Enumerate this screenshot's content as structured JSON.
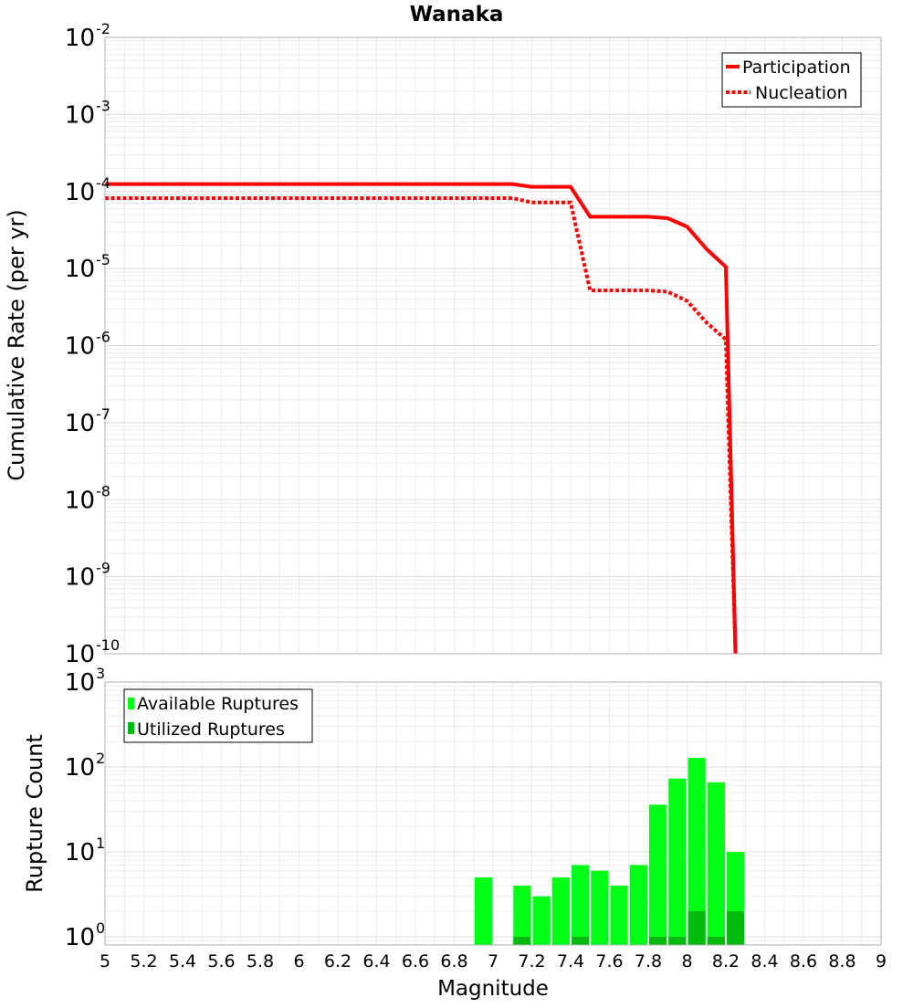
{
  "chart_data": {
    "title": "Wanaka",
    "xlabel": "Magnitude",
    "xlim": [
      5,
      9
    ],
    "x_ticks": [
      "5",
      "5.2",
      "5.4",
      "5.6",
      "5.8",
      "6",
      "6.2",
      "6.4",
      "6.6",
      "6.8",
      "7",
      "7.2",
      "7.4",
      "7.6",
      "7.8",
      "8",
      "8.2",
      "8.4",
      "8.6",
      "8.8",
      "9"
    ],
    "panels": [
      {
        "type": "line",
        "ylabel": "Cumulative Rate (per yr)",
        "yscale": "log",
        "ylim": [
          1e-10,
          0.01
        ],
        "y_tick_labels": [
          {
            "base": "10",
            "exp": "-2"
          },
          {
            "base": "10",
            "exp": "-3"
          },
          {
            "base": "10",
            "exp": "-4"
          },
          {
            "base": "10",
            "exp": "-5"
          },
          {
            "base": "10",
            "exp": "-6"
          },
          {
            "base": "10",
            "exp": "-7"
          },
          {
            "base": "10",
            "exp": "-8"
          },
          {
            "base": "10",
            "exp": "-9"
          },
          {
            "base": "10",
            "exp": "-10"
          }
        ],
        "legend_position": "top-right",
        "series": [
          {
            "name": "Participation",
            "color": "#ff0000",
            "style": "solid",
            "x": [
              5.0,
              7.1,
              7.2,
              7.4,
              7.5,
              7.8,
              7.9,
              8.0,
              8.1,
              8.2,
              8.25
            ],
            "y": [
              0.000125,
              0.000125,
              0.000115,
              0.000115,
              4.7e-05,
              4.7e-05,
              4.5e-05,
              3.5e-05,
              1.8e-05,
              1.05e-05,
              1e-10
            ]
          },
          {
            "name": "Nucleation",
            "color": "#ff0000",
            "style": "dotted",
            "x": [
              5.0,
              7.1,
              7.2,
              7.4,
              7.5,
              7.8,
              7.9,
              8.0,
              8.1,
              8.2,
              8.25
            ],
            "y": [
              8.2e-05,
              8.2e-05,
              7.2e-05,
              7.2e-05,
              5.2e-06,
              5.2e-06,
              5e-06,
              3.8e-06,
              2e-06,
              1.2e-06,
              1e-10
            ]
          }
        ]
      },
      {
        "type": "bar",
        "ylabel": "Rupture Count",
        "yscale": "log",
        "ylim": [
          0.8,
          1000
        ],
        "y_tick_labels": [
          {
            "base": "10",
            "exp": "3"
          },
          {
            "base": "10",
            "exp": "2"
          },
          {
            "base": "10",
            "exp": "1"
          },
          {
            "base": "10",
            "exp": "0"
          }
        ],
        "legend_position": "top-left",
        "bin_width": 0.1,
        "series": [
          {
            "name": "Available Ruptures",
            "color": "#00ff16",
            "x": [
              6.95,
              7.15,
              7.25,
              7.35,
              7.45,
              7.55,
              7.65,
              7.75,
              7.85,
              7.95,
              8.05,
              8.15,
              8.25
            ],
            "values": [
              5,
              4,
              3,
              5,
              7,
              6,
              4,
              7,
              36,
              73,
              128,
              66,
              10
            ]
          },
          {
            "name": "Utilized Ruptures",
            "color": "#00bb0e",
            "x": [
              7.15,
              7.45,
              7.85,
              7.95,
              8.05,
              8.15,
              8.25
            ],
            "values": [
              1,
              1,
              1,
              1,
              2,
              1,
              2
            ]
          }
        ]
      }
    ]
  }
}
